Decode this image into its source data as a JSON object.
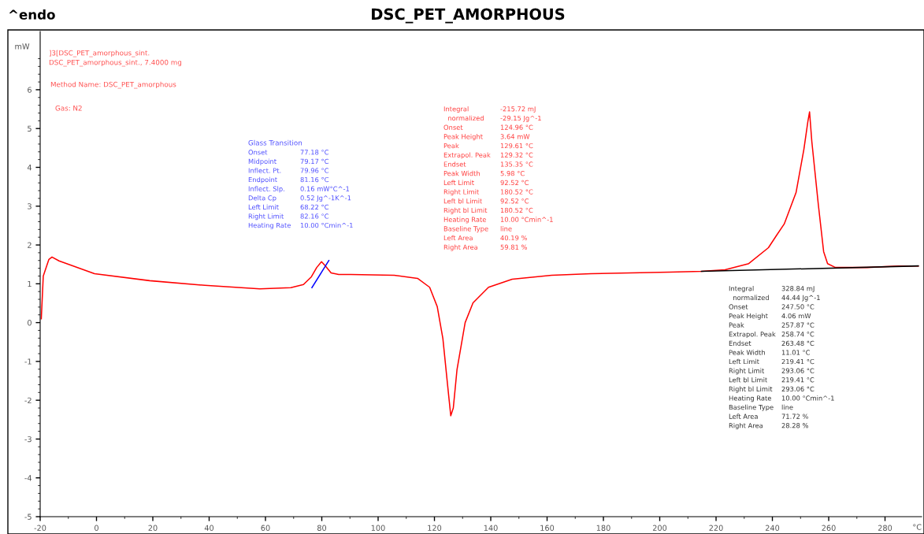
{
  "chart_data": {
    "type": "line",
    "title": "DSC_PET_AMORPHOUS",
    "xlabel": "°C",
    "ylabel": "mW",
    "xlim": [
      -20,
      293
    ],
    "ylim": [
      -5,
      7.5
    ],
    "xticks": [
      -20,
      0,
      20,
      40,
      60,
      80,
      100,
      120,
      140,
      160,
      180,
      200,
      220,
      240,
      260,
      280
    ],
    "yticks": [
      -5,
      -4,
      -3,
      -2,
      -1,
      0,
      1,
      2,
      3,
      4,
      5,
      6
    ],
    "grid": false,
    "marker": "none",
    "line_style": "solid",
    "series": [
      {
        "color": "#ff0000",
        "x": [
          -19.6,
          -18.9,
          -16.9,
          -15.8,
          -13.3,
          -0.7,
          18.9,
          38.5,
          58,
          69,
          73.5,
          76.3,
          78.2,
          79.9,
          81.3,
          83.3,
          86,
          90.3,
          105.7,
          114,
          118.3,
          121,
          123,
          124.7,
          125.8,
          126.7,
          128,
          130.9,
          133.7,
          139.2,
          147.6,
          161.6,
          175.6,
          189.6,
          203.6,
          214.8,
          223.2,
          231.6,
          238.6,
          241.4,
          244.2,
          248.4,
          251.2,
          252.6,
          253.2,
          254,
          256.3,
          258.2,
          259.6,
          262.4,
          273.6,
          284.8,
          291.8
        ],
        "values": [
          0.1,
          1.2,
          1.63,
          1.69,
          1.59,
          1.26,
          1.08,
          0.96,
          0.87,
          0.9,
          0.98,
          1.18,
          1.42,
          1.57,
          1.46,
          1.28,
          1.24,
          1.24,
          1.22,
          1.14,
          0.91,
          0.41,
          -0.41,
          -1.63,
          -2.4,
          -2.2,
          -1.22,
          0,
          0.51,
          0.91,
          1.12,
          1.22,
          1.26,
          1.28,
          1.3,
          1.32,
          1.36,
          1.52,
          1.93,
          2.24,
          2.54,
          3.35,
          4.47,
          5.18,
          5.43,
          4.67,
          3.05,
          1.83,
          1.52,
          1.42,
          1.42,
          1.46,
          1.46
        ]
      },
      {
        "color": "#0000ff",
        "x": [
          76.5,
          82.5
        ],
        "values": [
          0.9,
          1.6
        ]
      },
      {
        "color": "#000000",
        "x": [
          214.8,
          291.8
        ],
        "values": [
          1.32,
          1.46
        ]
      }
    ],
    "annotations": [
      "^endo",
      "]3[DSC_PET_amorphous_sint.",
      "DSC_PET_amorphous_sint., 7.4000 mg",
      "Method Name: DSC_PET_amorphous",
      "Gas: N2",
      "Glass Transition",
      "Onset",
      "77.18 °C",
      "Midpoint",
      "79.17 °C",
      "Inflect. Pt.",
      "79.96 °C",
      "Endpoint",
      "81.16 °C",
      "Inflect. Slp.",
      "0.16 mW°C^-1",
      "Delta Cp",
      "0.52 Jg^-1K^-1",
      "Left Limit",
      "68.22 °C",
      "Right Limit",
      "82.16 °C",
      "Heating Rate",
      "10.00 °Cmin^-1",
      "Integral",
      "-215.72 mJ",
      "  normalized",
      "-29.15 Jg^-1",
      "Onset",
      "124.96 °C",
      "Peak Height",
      "3.64 mW",
      "Peak",
      "129.61 °C",
      "Extrapol. Peak",
      "129.32 °C",
      "Endset",
      "135.35 °C",
      "Peak Width",
      "5.98 °C",
      "Left Limit",
      "92.52 °C",
      "Right Limit",
      "180.52 °C",
      "Left bl Limit",
      "92.52 °C",
      "Right bl Limit",
      "180.52 °C",
      "Heating Rate",
      "10.00 °Cmin^-1",
      "Baseline Type",
      "line",
      "Left Area",
      "40.19 %",
      "Right Area",
      "59.81 %",
      "Integral",
      "328.84 mJ",
      "  normalized",
      "44.44 Jg^-1",
      "Onset",
      "247.50 °C",
      "Peak Height",
      "4.06 mW",
      "Peak",
      "257.87 °C",
      "Extrapol. Peak",
      "258.74 °C",
      "Endset",
      "263.48 °C",
      "Peak Width",
      "11.01 °C",
      "Left Limit",
      "219.41 °C",
      "Right Limit",
      "293.06 °C",
      "Left bl Limit",
      "219.41 °C",
      "Right bl Limit",
      "293.06 °C",
      "Heating Rate",
      "10.00 °Cmin^-1",
      "Baseline Type",
      "line",
      "Left Area",
      "71.72 %",
      "Right Area",
      "28.28 %"
    ]
  }
}
